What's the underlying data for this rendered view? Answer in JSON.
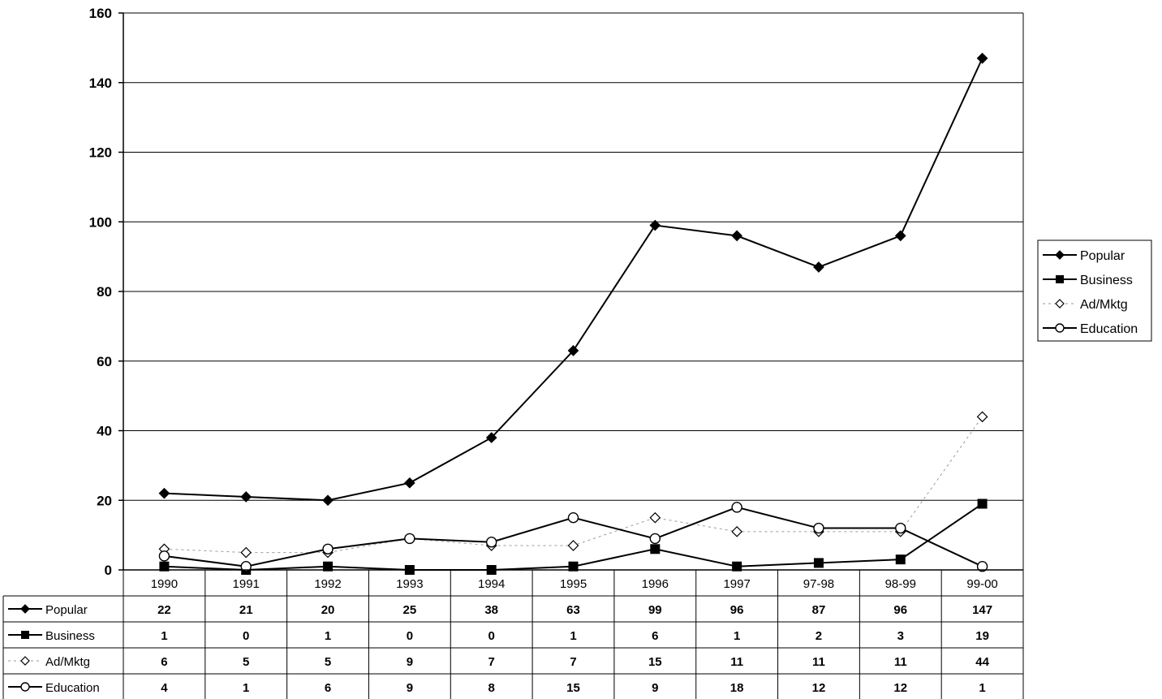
{
  "chart_data": {
    "type": "line",
    "title": "",
    "xlabel": "",
    "ylabel": "",
    "ylim": [
      0,
      160
    ],
    "yticks": [
      0,
      20,
      40,
      60,
      80,
      100,
      120,
      140,
      160
    ],
    "grid": true,
    "legend_position": "right",
    "categories": [
      "1990",
      "1991",
      "1992",
      "1993",
      "1994",
      "1995",
      "1996",
      "1997",
      "97-98",
      "98-99",
      "99-00"
    ],
    "series": [
      {
        "name": "Popular",
        "marker": "diamond",
        "values": [
          22,
          21,
          20,
          25,
          38,
          63,
          99,
          96,
          87,
          96,
          147
        ]
      },
      {
        "name": "Business",
        "marker": "square",
        "values": [
          1,
          0,
          1,
          0,
          0,
          1,
          6,
          1,
          2,
          3,
          19
        ]
      },
      {
        "name": "Ad/Mktg",
        "marker": "open-diamond",
        "values": [
          6,
          5,
          5,
          9,
          7,
          7,
          15,
          11,
          11,
          11,
          44
        ]
      },
      {
        "name": "Education",
        "marker": "open-circle",
        "values": [
          4,
          1,
          6,
          9,
          8,
          15,
          9,
          18,
          12,
          12,
          1
        ]
      }
    ],
    "colors": {
      "line": "#000000",
      "grid": "#000000",
      "background": "#ffffff"
    }
  }
}
